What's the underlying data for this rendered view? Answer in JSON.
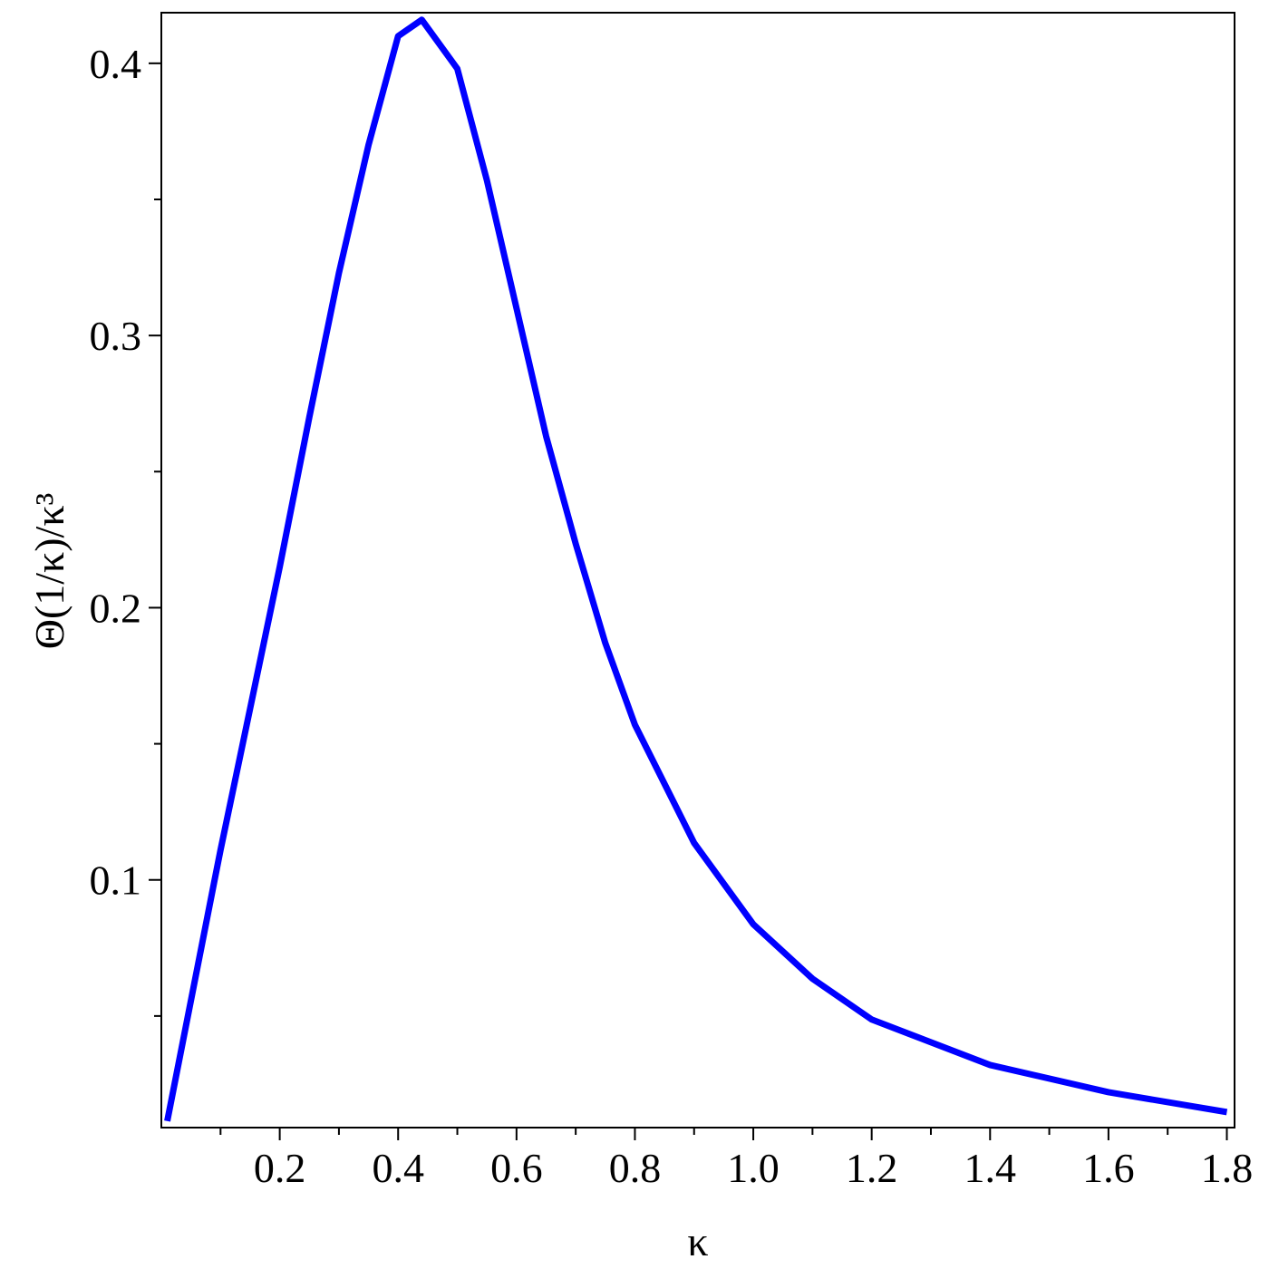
{
  "chart_data": {
    "type": "line",
    "x_label": "κ",
    "y_label": "Θ(1/κ)/κ³",
    "x": [
      0.01,
      0.09,
      0.1,
      0.15,
      0.2,
      0.25,
      0.3,
      0.35,
      0.4,
      0.44,
      0.5,
      0.55,
      0.6,
      0.65,
      0.7,
      0.75,
      0.8,
      0.9,
      1.0,
      1.1,
      1.2,
      1.4,
      1.6,
      1.8
    ],
    "series": [
      {
        "color": "#0000ff",
        "values": [
          0.0114,
          0.1,
          0.111,
          0.163,
          0.215,
          0.27,
          0.323,
          0.37,
          0.41,
          0.416,
          0.398,
          0.357,
          0.31,
          0.263,
          0.2235,
          0.187,
          0.157,
          0.1136,
          0.0837,
          0.0637,
          0.0487,
          0.032,
          0.022,
          0.0147
        ]
      }
    ],
    "xlim": [
      0,
      1.813
    ],
    "ylim": [
      0.009,
      0.4186
    ],
    "xticks": [
      0.2,
      0.4,
      0.6,
      0.8,
      {
        "value": 1,
        "label": "1.0"
      },
      1.2,
      1.4,
      1.6,
      1.8
    ],
    "yticks": [
      0.1,
      0.2,
      0.3,
      0.4
    ],
    "x_minor_ticks": [
      0.1,
      0.3,
      0.5,
      0.7,
      0.9,
      1.1,
      1.3,
      1.5,
      1.7
    ],
    "y_minor_ticks": [
      0.05,
      0.15,
      0.25,
      0.35
    ]
  }
}
